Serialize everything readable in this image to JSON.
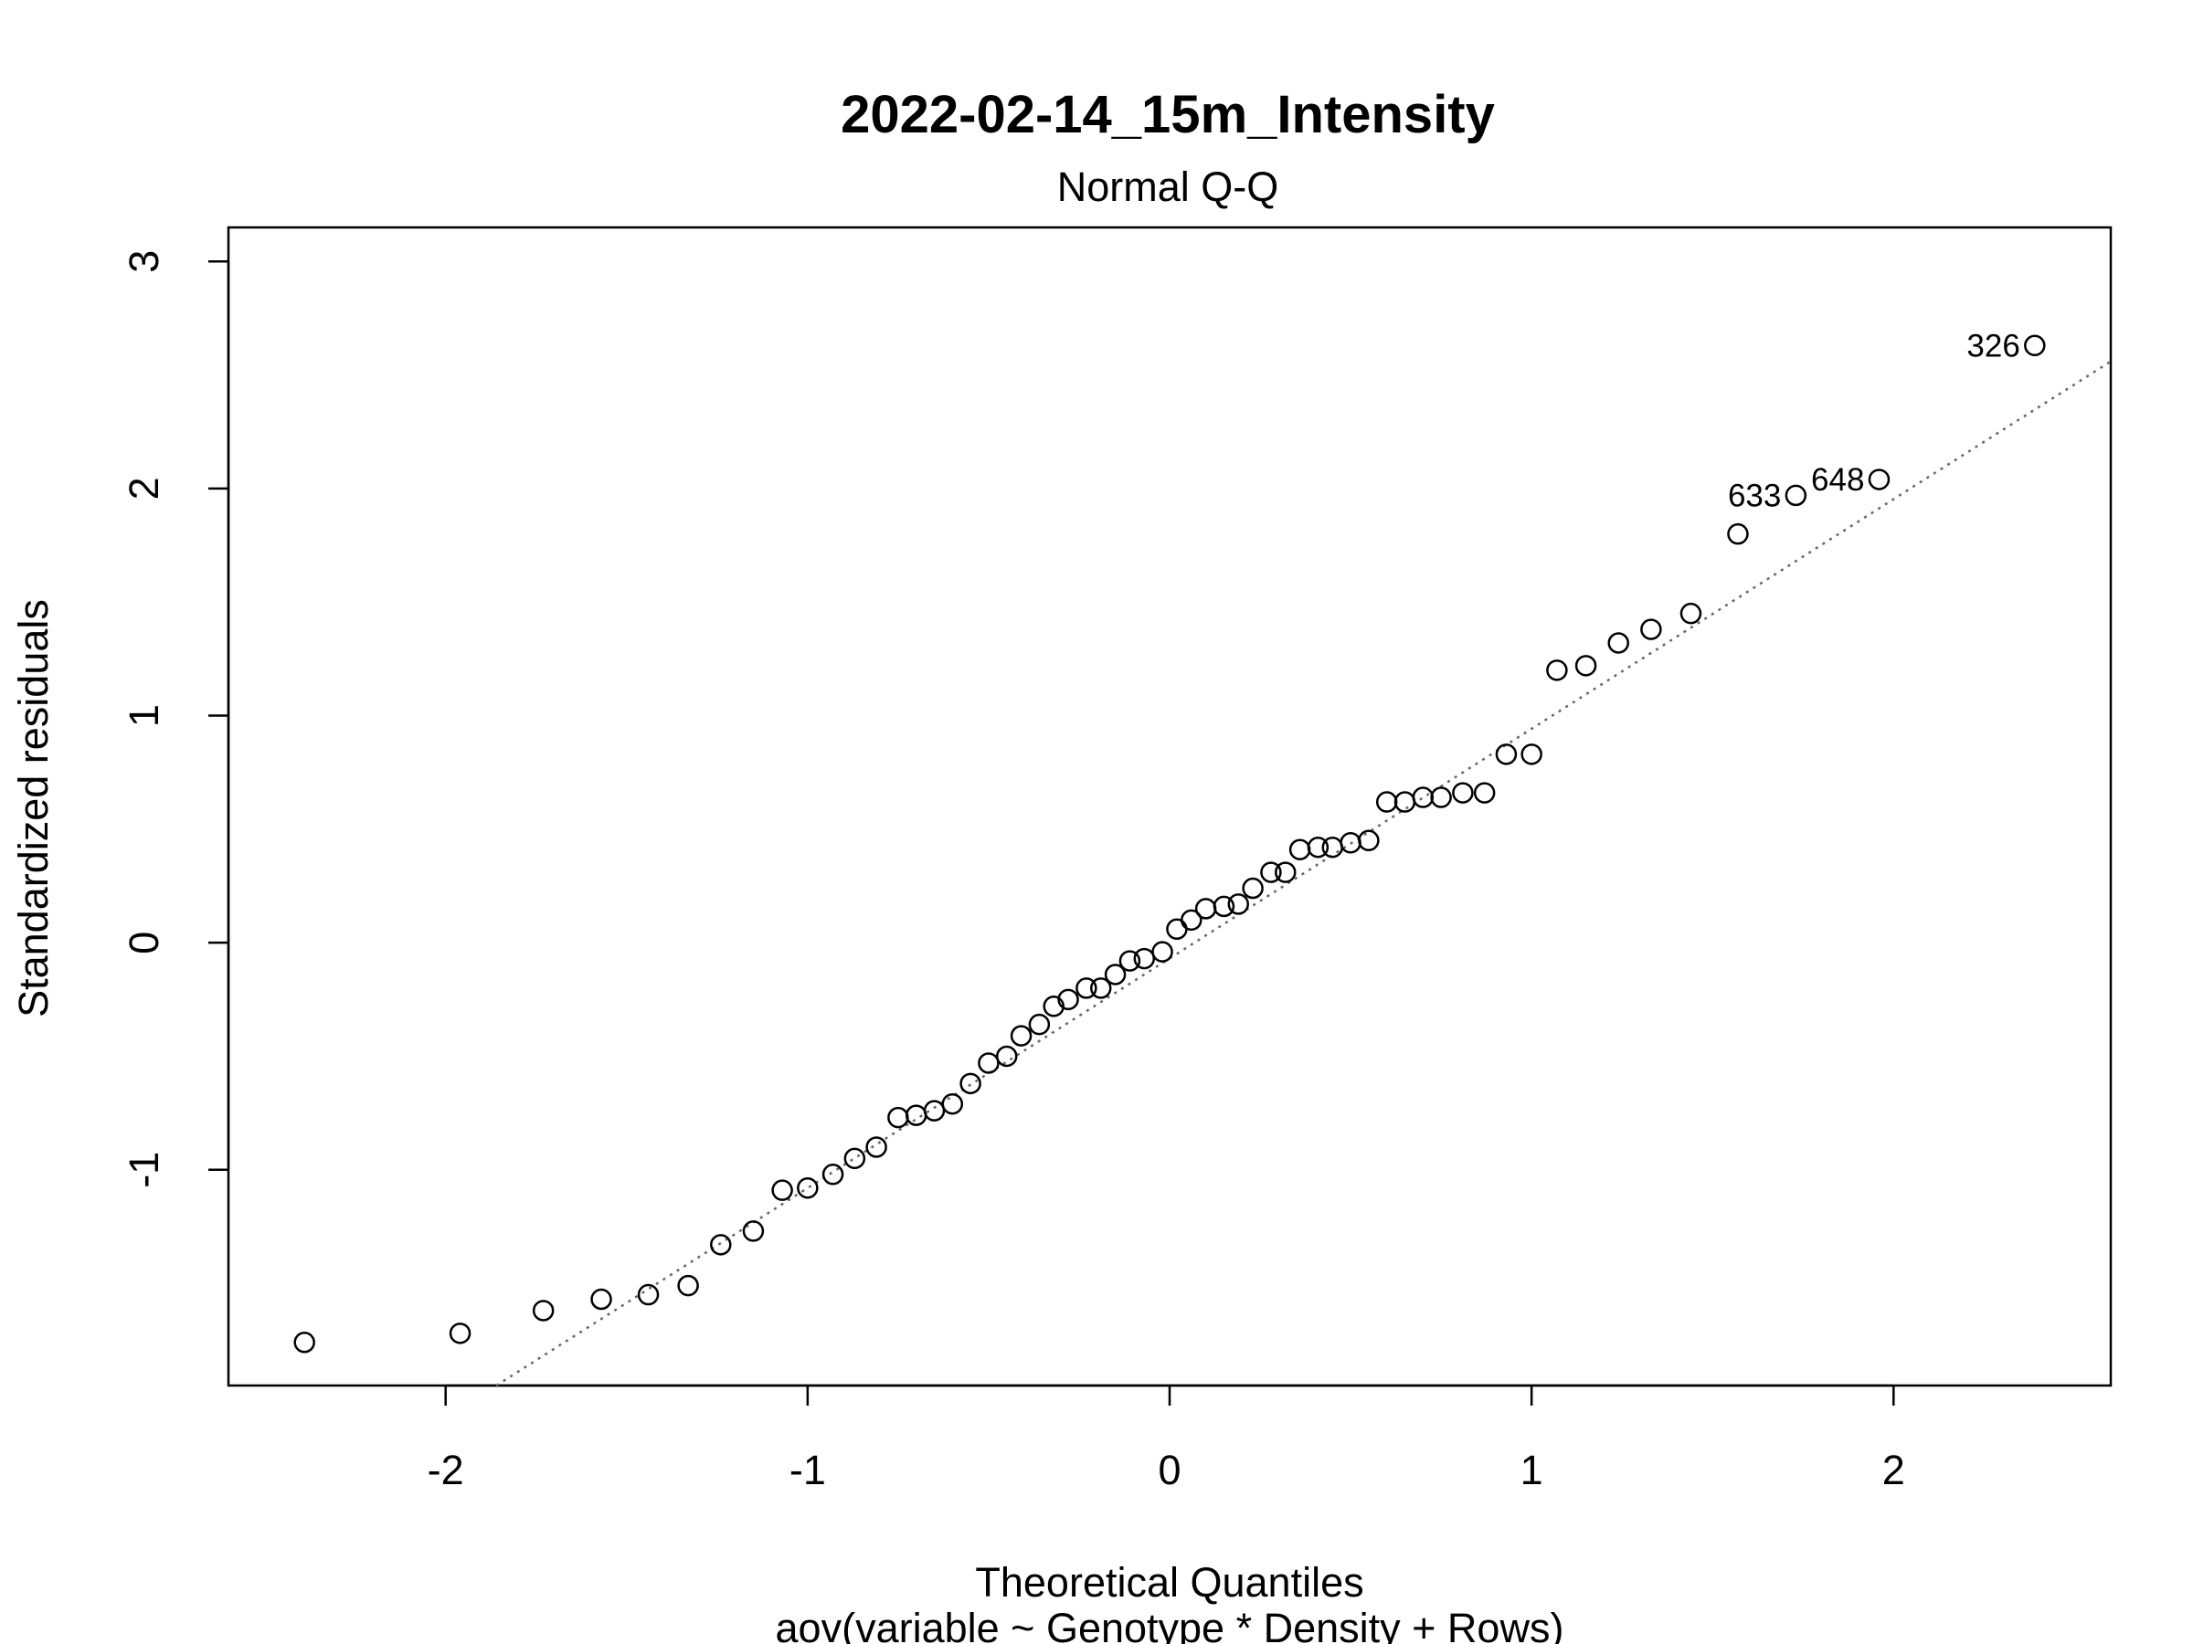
{
  "chart_data": {
    "type": "scatter",
    "title": "2022-02-14_15m_Intensity",
    "subtitle": "Normal Q-Q",
    "xlabel": "Theoretical Quantiles",
    "xlabel2": "aov(variable ~ Genotype * Density + Rows)",
    "ylabel": "Standardized residuals",
    "xlim": [
      -2.6,
      2.6
    ],
    "ylim": [
      -1.95,
      3.15
    ],
    "x_ticks": [
      -2,
      -1,
      0,
      1,
      2
    ],
    "x_tick_labels": [
      "-2",
      "-1",
      "0",
      "1",
      "2"
    ],
    "y_ticks": [
      -1,
      0,
      1,
      2,
      3
    ],
    "y_tick_labels": [
      "-1",
      "0",
      "1",
      "2",
      "3"
    ],
    "grid": false,
    "reference_line": {
      "style": "dotted",
      "color": "#666666",
      "points": [
        [
          -1.86,
          -1.95
        ],
        [
          2.6,
          2.56
        ]
      ]
    },
    "points": [
      {
        "x": -2.39,
        "y": -1.76
      },
      {
        "x": -1.96,
        "y": -1.72
      },
      {
        "x": -1.73,
        "y": -1.62
      },
      {
        "x": -1.57,
        "y": -1.57
      },
      {
        "x": -1.44,
        "y": -1.55
      },
      {
        "x": -1.33,
        "y": -1.51
      },
      {
        "x": -1.24,
        "y": -1.33
      },
      {
        "x": -1.15,
        "y": -1.27
      },
      {
        "x": -1.07,
        "y": -1.09
      },
      {
        "x": -1.0,
        "y": -1.08
      },
      {
        "x": -0.93,
        "y": -1.02
      },
      {
        "x": -0.87,
        "y": -0.95
      },
      {
        "x": -0.81,
        "y": -0.9
      },
      {
        "x": -0.75,
        "y": -0.77
      },
      {
        "x": -0.7,
        "y": -0.76
      },
      {
        "x": -0.65,
        "y": -0.74
      },
      {
        "x": -0.6,
        "y": -0.71
      },
      {
        "x": -0.55,
        "y": -0.62
      },
      {
        "x": -0.5,
        "y": -0.53
      },
      {
        "x": -0.45,
        "y": -0.5
      },
      {
        "x": -0.41,
        "y": -0.41
      },
      {
        "x": -0.36,
        "y": -0.36
      },
      {
        "x": -0.32,
        "y": -0.28
      },
      {
        "x": -0.28,
        "y": -0.25
      },
      {
        "x": -0.23,
        "y": -0.2
      },
      {
        "x": -0.19,
        "y": -0.2
      },
      {
        "x": -0.15,
        "y": -0.14
      },
      {
        "x": -0.11,
        "y": -0.08
      },
      {
        "x": -0.07,
        "y": -0.07
      },
      {
        "x": -0.02,
        "y": -0.04
      },
      {
        "x": 0.02,
        "y": 0.06
      },
      {
        "x": 0.06,
        "y": 0.1
      },
      {
        "x": 0.1,
        "y": 0.15
      },
      {
        "x": 0.15,
        "y": 0.16
      },
      {
        "x": 0.19,
        "y": 0.17
      },
      {
        "x": 0.23,
        "y": 0.24
      },
      {
        "x": 0.28,
        "y": 0.31
      },
      {
        "x": 0.32,
        "y": 0.31
      },
      {
        "x": 0.36,
        "y": 0.41
      },
      {
        "x": 0.41,
        "y": 0.42
      },
      {
        "x": 0.45,
        "y": 0.42
      },
      {
        "x": 0.5,
        "y": 0.44
      },
      {
        "x": 0.55,
        "y": 0.45
      },
      {
        "x": 0.6,
        "y": 0.62
      },
      {
        "x": 0.65,
        "y": 0.62
      },
      {
        "x": 0.7,
        "y": 0.64
      },
      {
        "x": 0.75,
        "y": 0.64
      },
      {
        "x": 0.81,
        "y": 0.66
      },
      {
        "x": 0.87,
        "y": 0.66
      },
      {
        "x": 0.93,
        "y": 0.83
      },
      {
        "x": 1.0,
        "y": 0.83
      },
      {
        "x": 1.07,
        "y": 1.2
      },
      {
        "x": 1.15,
        "y": 1.22
      },
      {
        "x": 1.24,
        "y": 1.32
      },
      {
        "x": 1.33,
        "y": 1.38
      },
      {
        "x": 1.44,
        "y": 1.45
      },
      {
        "x": 1.57,
        "y": 1.8
      },
      {
        "x": 1.73,
        "y": 1.97,
        "label": "633"
      },
      {
        "x": 1.96,
        "y": 2.04,
        "label": "648"
      },
      {
        "x": 2.39,
        "y": 2.63,
        "label": "326"
      }
    ]
  }
}
